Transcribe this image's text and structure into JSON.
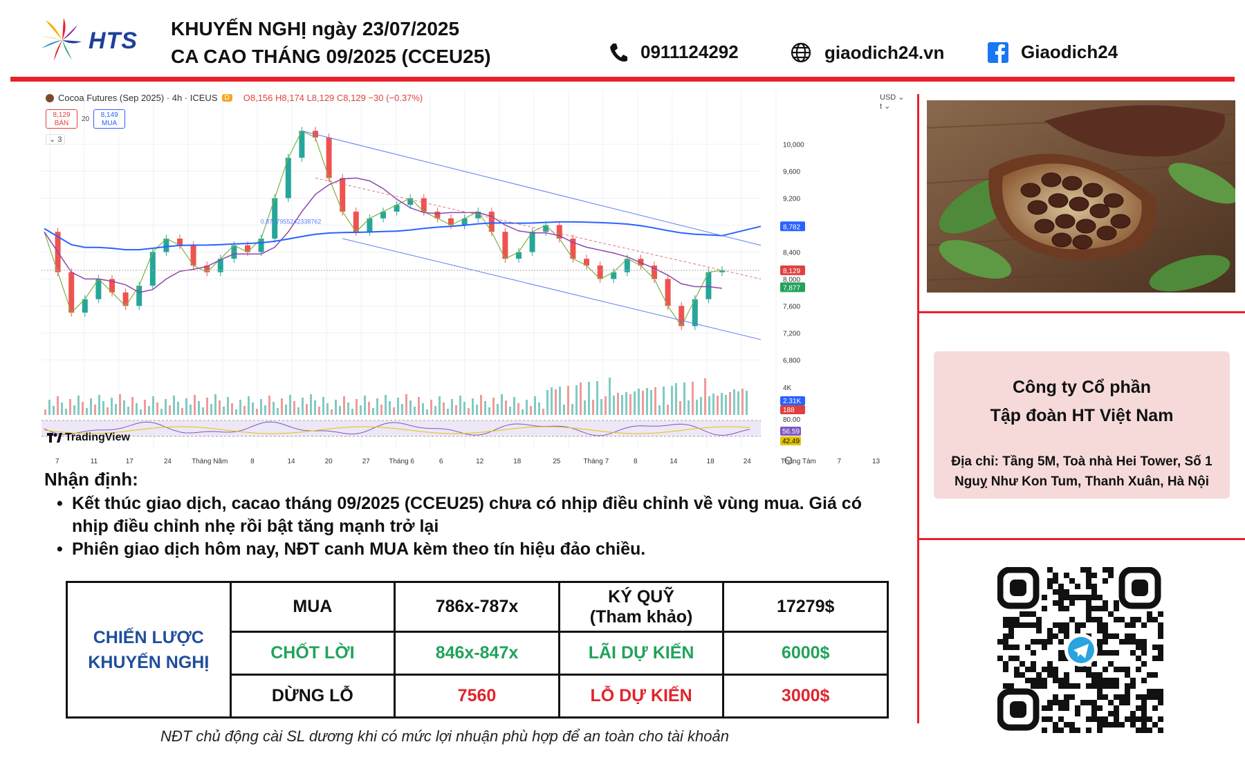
{
  "header": {
    "logo_text": "HTS",
    "title_line1": "KHUYẾN NGHỊ ngày 23/07/2025",
    "title_line2": "CA CAO THÁNG 09/2025 (CCEU25)",
    "phone": "0911124292",
    "website": "giaodich24.vn",
    "facebook": "Giaodich24",
    "accent_color": "#e8212a"
  },
  "chart_panel": {
    "instrument": "Cocoa Futures (Sep 2025) · 4h · ICEUS",
    "badge": "D",
    "ohlc": "O8,156 H8,174 L8,129 C8,129 −30 (−0.37%)",
    "sell_price": "8,129",
    "sell_label": "BÁN",
    "spread": "20",
    "buy_price": "8,149",
    "buy_label": "MUA",
    "indicator_count": "3",
    "currency": "USD",
    "currency_sub": "t",
    "brand": "TradingView"
  },
  "chart_data": {
    "type": "line",
    "price_axis": [
      "10,000",
      "9,600",
      "9,200",
      "8,800",
      "8,400",
      "8,000",
      "7,600",
      "7,200",
      "6,800"
    ],
    "price_range": [
      6700,
      10500
    ],
    "price_tags": [
      {
        "label": "8,782",
        "value": 8782,
        "color": "#2962ff"
      },
      {
        "label": "8,129",
        "value": 8129,
        "color": "#e04040"
      },
      {
        "label": "7,877",
        "value": 7877,
        "color": "#21a35b"
      }
    ],
    "fib_label": "0.8767955242338762",
    "time_axis": [
      "7",
      "11",
      "17",
      "24",
      "Tháng Năm",
      "8",
      "14",
      "20",
      "27",
      "Tháng 6",
      "6",
      "12",
      "18",
      "25",
      "Tháng 7",
      "8",
      "14",
      "18",
      "24",
      "Tháng Tám",
      "7",
      "13"
    ],
    "volume_axis": [
      "4K"
    ],
    "volume_tags": [
      {
        "label": "2.31K",
        "color": "#2962ff"
      },
      {
        "label": "188",
        "color": "#e04040"
      }
    ],
    "rsi_axis": [
      "80.00"
    ],
    "rsi_tags": [
      {
        "label": "56.59",
        "color": "#7e57c2"
      },
      {
        "label": "42.49",
        "color": "#e3c400"
      }
    ],
    "close_prices": [
      8700,
      8100,
      7500,
      7700,
      8000,
      7800,
      7600,
      7900,
      8400,
      8600,
      8500,
      8200,
      8100,
      8300,
      8500,
      8400,
      8600,
      9200,
      9800,
      10200,
      10100,
      9500,
      9000,
      8700,
      8900,
      9000,
      9100,
      9200,
      9000,
      8900,
      8800,
      8900,
      9000,
      8700,
      8300,
      8400,
      8700,
      8800,
      8600,
      8300,
      8200,
      8000,
      8100,
      8300,
      8200,
      8000,
      7600,
      7300,
      7700,
      8100,
      8129
    ]
  },
  "analysis": {
    "title": "Nhận định:",
    "bullets": [
      "Kết thúc giao dịch, cacao tháng 09/2025 (CCEU25) chưa có nhịp điều chỉnh về vùng mua. Giá có nhịp điều chỉnh nhẹ rồi bật tăng mạnh trở lại",
      "Phiên giao dịch hôm nay, NĐT canh MUA kèm theo tín hiệu đảo chiều."
    ]
  },
  "strategy": {
    "heading_line1": "CHIẾN LƯỢC",
    "heading_line2": "KHUYẾN NGHỊ",
    "buy_label": "MUA",
    "buy_value": "786x-787x",
    "margin_line1": "KÝ QUỸ",
    "margin_line2": "(Tham khảo)",
    "margin_value": "17279$",
    "tp_label": "CHỐT LỜI",
    "tp_value": "846x-847x",
    "profit_label": "LÃI DỰ KIẾN",
    "profit_value": "6000$",
    "sl_label": "DỪNG LỖ",
    "sl_value": "7560",
    "loss_label": "LỖ DỰ KIẾN",
    "loss_value": "3000$",
    "note": "NĐT chủ động cài SL dương khi có mức lợi nhuận phù hợp để an toàn cho tài khoản"
  },
  "company": {
    "name_line1": "Công ty Cổ phần",
    "name_line2": "Tập đoàn HT Việt Nam",
    "address_line1": "Địa chỉ: Tầng 5M, Toà nhà Hei Tower, Số 1",
    "address_line2": "Nguỵ Như Kon Tum, Thanh Xuân, Hà Nội"
  },
  "icons": [
    "phone-icon",
    "globe-icon",
    "facebook-icon",
    "telegram-icon"
  ]
}
